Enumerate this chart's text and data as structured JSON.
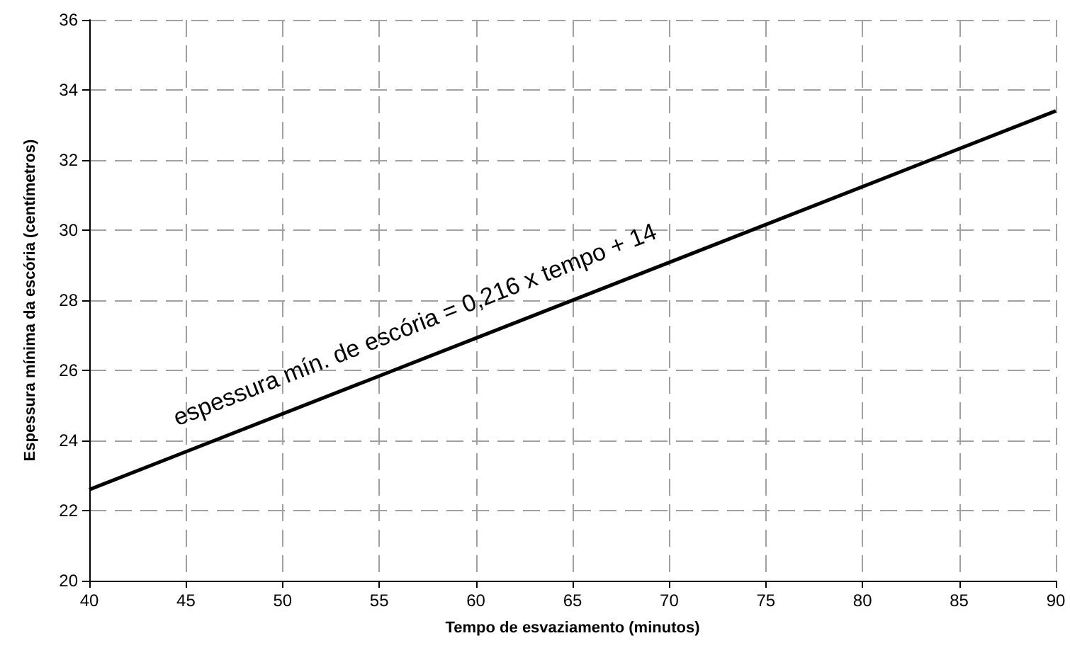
{
  "chart_data": {
    "type": "line",
    "xlabel": "Tempo de esvaziamento (minutos)",
    "ylabel": "Espessura mínima da escória (centímetros)",
    "annotations": [
      "espessura mín. de escória = 0,216 x tempo + 14"
    ],
    "x": [
      40,
      90
    ],
    "series": [
      {
        "color": "#000000",
        "values": [
          22.6,
          33.4
        ]
      }
    ],
    "xlim": [
      40,
      90
    ],
    "xticks": [
      40,
      45,
      50,
      55,
      60,
      65,
      70,
      75,
      80,
      85,
      90
    ],
    "ylim": [
      20,
      36
    ],
    "yticks": [
      20,
      22,
      24,
      26,
      28,
      30,
      32,
      34,
      36
    ],
    "grid": true,
    "marker": "none",
    "line_style": "solid"
  }
}
